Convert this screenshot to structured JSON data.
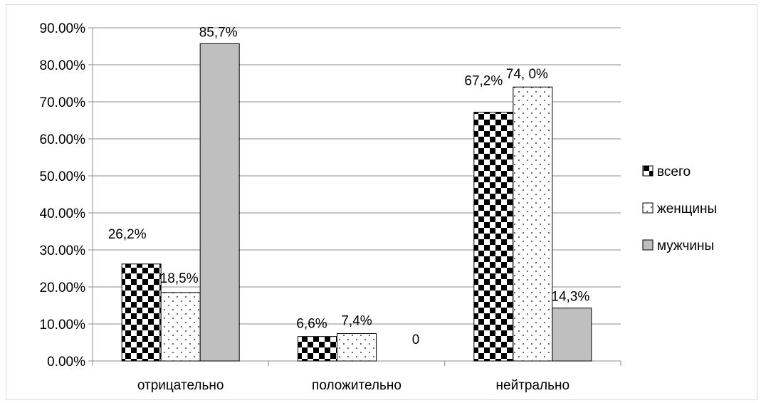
{
  "chart_data": {
    "type": "bar",
    "categories": [
      "отрицательно",
      "положительно",
      "нейтрально"
    ],
    "series": [
      {
        "name": "всего",
        "values": [
          26.2,
          6.6,
          67.2
        ],
        "labels": [
          "26,2%",
          "6,6%",
          "67,2%"
        ],
        "pattern": "checker"
      },
      {
        "name": "женщины",
        "values": [
          18.5,
          7.4,
          74.0
        ],
        "labels": [
          "18,5%",
          "7,4%",
          "74, 0%"
        ],
        "pattern": "dots"
      },
      {
        "name": "мужчины",
        "values": [
          85.7,
          0,
          14.3
        ],
        "labels": [
          "85,7%",
          "0",
          "14,3%"
        ],
        "pattern": "solid"
      }
    ],
    "y_ticks": [
      "0.00%",
      "10.00%",
      "20.00%",
      "30.00%",
      "40.00%",
      "50.00%",
      "60.00%",
      "70.00%",
      "80.00%",
      "90.00%"
    ],
    "ylim": [
      0,
      90
    ],
    "grid": true,
    "legend": "right",
    "colors": {
      "bar_dark": "#000000",
      "bar_gray": "#bfbfbf",
      "grid": "#8c8c8c",
      "axis": "#8c8c8c"
    }
  }
}
